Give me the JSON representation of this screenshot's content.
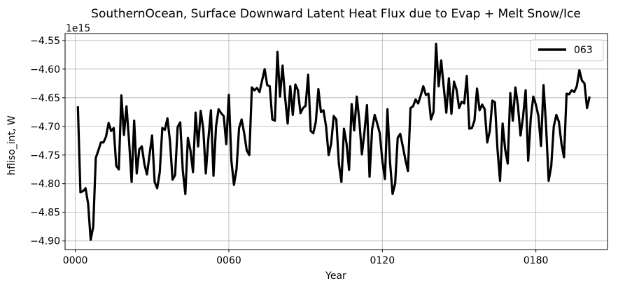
{
  "chart_data": {
    "type": "line",
    "title": "SouthernOcean, Surface Downward Latent Heat Flux due to Evap + Melt Snow/Ice",
    "xlabel": "Year",
    "ylabel": "hfliso_int, W",
    "y_offset_label": "1e15",
    "xlim": [
      -4,
      208
    ],
    "ylim": [
      -4.915,
      -4.538
    ],
    "x_ticks": [
      0,
      60,
      120,
      180
    ],
    "x_tick_labels": [
      "0000",
      "0060",
      "0120",
      "0180"
    ],
    "y_ticks": [
      -4.9,
      -4.85,
      -4.8,
      -4.75,
      -4.7,
      -4.65,
      -4.6,
      -4.55
    ],
    "y_tick_labels": [
      "−4.90",
      "−4.85",
      "−4.80",
      "−4.75",
      "−4.70",
      "−4.65",
      "−4.60",
      "−4.55"
    ],
    "grid": true,
    "legend_position": "top-right",
    "series": [
      {
        "name": "063",
        "color": "#000000",
        "x_start": 1,
        "values": [
          -4.665,
          -4.815,
          -4.813,
          -4.808,
          -4.835,
          -4.898,
          -4.875,
          -4.755,
          -4.742,
          -4.728,
          -4.728,
          -4.718,
          -4.694,
          -4.708,
          -4.703,
          -4.769,
          -4.775,
          -4.646,
          -4.715,
          -4.665,
          -4.725,
          -4.797,
          -4.69,
          -4.782,
          -4.74,
          -4.735,
          -4.766,
          -4.784,
          -4.75,
          -4.716,
          -4.797,
          -4.808,
          -4.78,
          -4.703,
          -4.706,
          -4.686,
          -4.726,
          -4.793,
          -4.785,
          -4.701,
          -4.693,
          -4.777,
          -4.818,
          -4.72,
          -4.742,
          -4.78,
          -4.676,
          -4.735,
          -4.673,
          -4.704,
          -4.782,
          -4.722,
          -4.672,
          -4.786,
          -4.7,
          -4.67,
          -4.677,
          -4.682,
          -4.731,
          -4.645,
          -4.76,
          -4.802,
          -4.775,
          -4.703,
          -4.688,
          -4.712,
          -4.742,
          -4.75,
          -4.632,
          -4.637,
          -4.633,
          -4.64,
          -4.62,
          -4.6,
          -4.628,
          -4.63,
          -4.688,
          -4.69,
          -4.57,
          -4.648,
          -4.594,
          -4.65,
          -4.695,
          -4.63,
          -4.68,
          -4.627,
          -4.637,
          -4.677,
          -4.668,
          -4.664,
          -4.61,
          -4.708,
          -4.712,
          -4.692,
          -4.635,
          -4.675,
          -4.672,
          -4.7,
          -4.75,
          -4.73,
          -4.682,
          -4.688,
          -4.765,
          -4.797,
          -4.704,
          -4.73,
          -4.776,
          -4.661,
          -4.707,
          -4.648,
          -4.69,
          -4.749,
          -4.71,
          -4.663,
          -4.788,
          -4.705,
          -4.68,
          -4.695,
          -4.712,
          -4.76,
          -4.792,
          -4.67,
          -4.762,
          -4.818,
          -4.8,
          -4.72,
          -4.713,
          -4.735,
          -4.758,
          -4.778,
          -4.668,
          -4.665,
          -4.653,
          -4.66,
          -4.646,
          -4.63,
          -4.645,
          -4.643,
          -4.688,
          -4.675,
          -4.556,
          -4.63,
          -4.585,
          -4.632,
          -4.676,
          -4.616,
          -4.678,
          -4.622,
          -4.636,
          -4.668,
          -4.657,
          -4.66,
          -4.612,
          -4.704,
          -4.703,
          -4.69,
          -4.634,
          -4.672,
          -4.662,
          -4.67,
          -4.728,
          -4.708,
          -4.655,
          -4.658,
          -4.74,
          -4.795,
          -4.695,
          -4.74,
          -4.765,
          -4.642,
          -4.69,
          -4.632,
          -4.664,
          -4.716,
          -4.683,
          -4.637,
          -4.76,
          -4.686,
          -4.648,
          -4.662,
          -4.682,
          -4.734,
          -4.628,
          -4.7,
          -4.795,
          -4.77,
          -4.7,
          -4.68,
          -4.692,
          -4.73,
          -4.754,
          -4.643,
          -4.644,
          -4.637,
          -4.64,
          -4.63,
          -4.602,
          -4.62,
          -4.625,
          -4.668,
          -4.648
        ]
      }
    ]
  }
}
